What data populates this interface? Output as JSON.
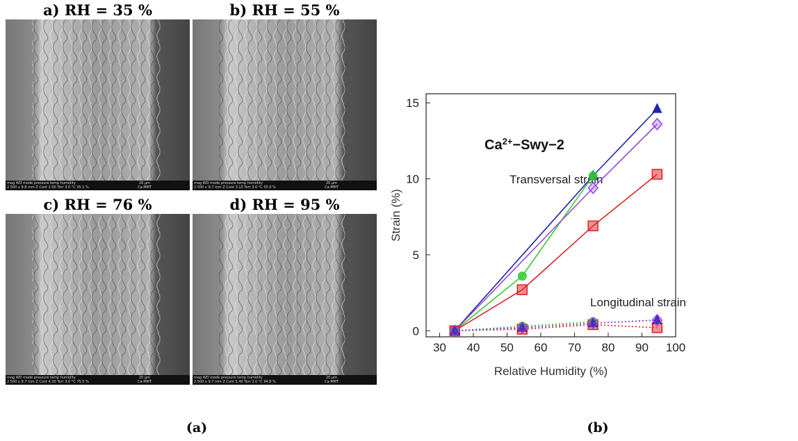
{
  "images": {
    "panels": [
      {
        "label": "a) RH = 35 %",
        "info": [
          "mag   WD   mode pressure temp humidity",
          "20 µm",
          "2 500 x 9.8 mm Z Cont 2.00 Torr 3.0 °C 35.1 %",
          "Ca-MMT"
        ]
      },
      {
        "label": "b) RH = 55 %",
        "info": [
          "mag   WD   mode pressure temp humidity",
          "20 µm",
          "2 500 x 9.7 mm Z Cont 3.13 Torr 3.0 °C 55.0 %",
          "Ca-MMT"
        ]
      },
      {
        "label": "c) RH = 76 %",
        "info": [
          "mag   WD   mode pressure temp humidity",
          "20 µm",
          "2 500 x 9.7 mm Z Cont 4.30 Torr 3.0 °C 75.5 %",
          "Ca-MMT"
        ]
      },
      {
        "label": "d) RH = 95 %",
        "info": [
          "mag   WD   mode pressure temp humidity",
          "20 µm",
          "2 500 x 9.7 mm Z Cont 5.40 Torr 3.0 °C 94.8 %",
          "Ca-MMT"
        ]
      }
    ],
    "caption": "(a)"
  },
  "chart_data": {
    "type": "line",
    "caption": "(b)",
    "xlabel": "Relative Humidity (%)",
    "ylabel": "Strain (%)",
    "annotations": {
      "sample": [
        "Ca",
        "2+",
        "−Swy−2"
      ],
      "transversal": "Transversal strain",
      "longitudinal": "Longitudinal strain"
    },
    "xlim": [
      26,
      100
    ],
    "ylim": [
      -0.4,
      15.6
    ],
    "xticks": [
      30,
      40,
      50,
      60,
      70,
      80,
      90,
      100
    ],
    "yticks": [
      0,
      5,
      10,
      15
    ],
    "series": [
      {
        "color": "#2222aa",
        "marker": "triangle",
        "style": "solid",
        "x": [
          34.5,
          75.5,
          94.5
        ],
        "values": [
          0,
          10.2,
          14.6
        ]
      },
      {
        "color": "#33cc33",
        "marker": "circle",
        "style": "solid",
        "x": [
          34.5,
          54.5,
          75.5
        ],
        "values": [
          0,
          3.6,
          10.2
        ]
      },
      {
        "color": "#9944dd",
        "marker": "diamond",
        "style": "solid",
        "x": [
          34.5,
          75.5,
          94.5
        ],
        "values": [
          0,
          9.4,
          13.6
        ]
      },
      {
        "color": "#dd2222",
        "marker": "square",
        "style": "solid",
        "x": [
          34.5,
          54.5,
          75.5,
          94.5
        ],
        "values": [
          0,
          2.7,
          6.9,
          10.3
        ]
      },
      {
        "color": "#dd2222",
        "marker": "square",
        "style": "dotted",
        "x": [
          34.5,
          54.5,
          75.5,
          94.5
        ],
        "values": [
          0,
          0.1,
          0.4,
          0.2
        ]
      },
      {
        "color": "#33cc33",
        "marker": "circle",
        "style": "dotted",
        "x": [
          34.5,
          54.5,
          75.5
        ],
        "values": [
          0,
          0.3,
          0.6
        ]
      },
      {
        "color": "#2222aa",
        "marker": "triangle",
        "style": "dotted",
        "x": [
          34.5,
          54.5,
          75.5,
          94.5
        ],
        "values": [
          0,
          0.2,
          0.5,
          0.7
        ]
      },
      {
        "color": "#9944dd",
        "marker": "diamond",
        "style": "dotted",
        "x": [
          34.5,
          54.5,
          75.5,
          94.5
        ],
        "values": [
          0,
          0.2,
          0.5,
          0.7
        ]
      }
    ]
  }
}
